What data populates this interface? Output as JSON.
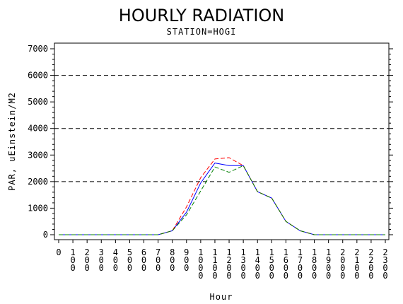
{
  "chart_data": {
    "type": "line",
    "title": "HOURLY RADIATION",
    "subtitle": "STATION=HOGI",
    "xlabel": "Hour",
    "ylabel": "PAR, uEinstein/M2",
    "x": [
      0,
      100,
      200,
      300,
      400,
      500,
      600,
      700,
      800,
      900,
      1000,
      1100,
      1200,
      1300,
      1400,
      1500,
      1600,
      1700,
      1800,
      1900,
      2000,
      2100,
      2200,
      2300
    ],
    "x_tick_labels": [
      "0",
      "100",
      "200",
      "300",
      "400",
      "500",
      "600",
      "700",
      "800",
      "900",
      "1000",
      "1100",
      "1200",
      "1300",
      "1400",
      "1500",
      "1600",
      "1700",
      "1800",
      "1900",
      "2000",
      "2100",
      "2200",
      "2300"
    ],
    "ylim": [
      0,
      7000
    ],
    "y_ticks": [
      0,
      1000,
      2000,
      3000,
      4000,
      5000,
      6000,
      7000
    ],
    "y_tick_labels": [
      "0",
      "1000",
      "2000",
      "3000",
      "4000",
      "5000",
      "6000",
      "7000"
    ],
    "reference_lines": [
      2000,
      4000,
      6000
    ],
    "series": [
      {
        "color": "#0000ff",
        "dash": "solid",
        "values": [
          0,
          0,
          0,
          0,
          0,
          0,
          0,
          0,
          150,
          850,
          1950,
          2700,
          2600,
          2600,
          1620,
          1380,
          500,
          150,
          0,
          0,
          0,
          0,
          0,
          0
        ]
      },
      {
        "color": "#ff0000",
        "dash": "dashed",
        "values": [
          0,
          0,
          0,
          0,
          0,
          0,
          0,
          0,
          150,
          1050,
          2150,
          2850,
          2900,
          2600,
          1620,
          1380,
          500,
          150,
          0,
          0,
          0,
          0,
          0,
          0
        ]
      },
      {
        "color": "#008000",
        "dash": "dashed",
        "values": [
          0,
          0,
          0,
          0,
          0,
          0,
          0,
          0,
          150,
          750,
          1650,
          2550,
          2350,
          2600,
          1620,
          1380,
          500,
          150,
          0,
          0,
          0,
          0,
          0,
          0
        ]
      }
    ]
  }
}
